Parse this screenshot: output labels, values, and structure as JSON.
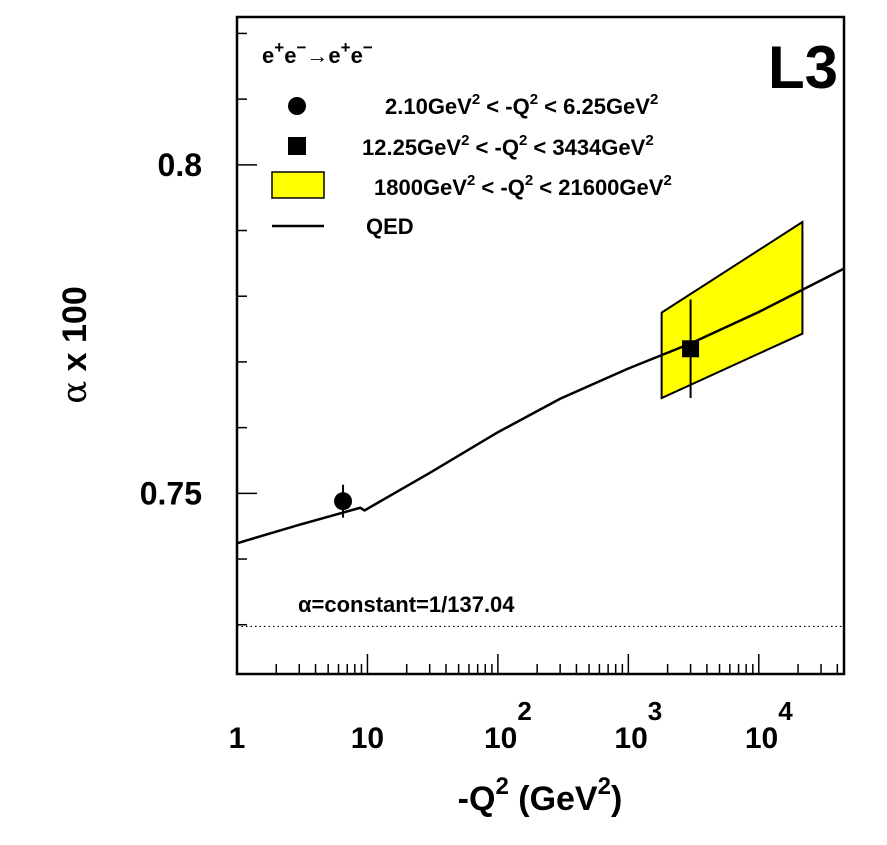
{
  "chart_data": {
    "type": "scatter",
    "title": "L3",
    "process_label": {
      "lhs": "e",
      "lhs_sup1": "+",
      "lhs_mid": "e",
      "lhs_sup2": "−",
      "arrow": "→",
      "rhs": "e",
      "rhs_sup1": "+",
      "rhs_mid": "e",
      "rhs_sup2": "−"
    },
    "xlabel": {
      "prefix": "-Q",
      "sup": "2",
      "middle": " (GeV",
      "sup2": "2",
      "suffix": ")"
    },
    "ylabel": {
      "alpha": "α",
      "rest": " x 100"
    },
    "x_scale": "log",
    "xlim": [
      1,
      45000
    ],
    "ylim": [
      0.7225,
      0.8225
    ],
    "x_ticks": [
      {
        "value": 1,
        "base": "1",
        "exp": ""
      },
      {
        "value": 10,
        "base": "10",
        "exp": ""
      },
      {
        "value": 100,
        "base": "10",
        "exp": "2"
      },
      {
        "value": 1000,
        "base": "10",
        "exp": "3"
      },
      {
        "value": 10000,
        "base": "10",
        "exp": "4"
      }
    ],
    "y_ticks": [
      {
        "value": 0.75,
        "label": "0.75"
      },
      {
        "value": 0.8,
        "label": "0.8"
      }
    ],
    "y_minor_step": 0.01,
    "series": [
      {
        "name": "2.10GeV² < -Q² < 6.25GeV²",
        "legend": {
          "a": "2.10GeV",
          "a_sup": "2",
          "lt1": " < -Q",
          "q_sup": "2",
          "lt2": " < 6.25GeV",
          "b_sup": "2"
        },
        "marker": "circle",
        "x": 6.5,
        "y": 0.7488,
        "yerr_low": 0.0025,
        "yerr_high": 0.0025
      },
      {
        "name": "12.25GeV² < -Q² < 3434GeV²",
        "legend": {
          "a": "12.25GeV",
          "a_sup": "2",
          "lt1": " < -Q",
          "q_sup": "2",
          "lt2": " < 3434GeV",
          "b_sup": "2"
        },
        "marker": "square",
        "x": 3000,
        "y": 0.772,
        "yerr_low": 0.0075,
        "yerr_high": 0.0075
      },
      {
        "name": "1800GeV² < -Q² < 21600GeV²",
        "legend": {
          "a": "1800GeV",
          "a_sup": "2",
          "lt1": " < -Q",
          "q_sup": "2",
          "lt2": " < 21600GeV",
          "b_sup": "2"
        },
        "marker": "band",
        "color": "#ffff00",
        "band": {
          "x_low": 1800,
          "x_high": 21600,
          "upper": [
            0.7775,
            0.7913
          ],
          "lower": [
            0.7645,
            0.7743
          ]
        }
      },
      {
        "name": "QED",
        "legend": {
          "text": "QED"
        },
        "marker": "line",
        "x": [
          1,
          3,
          8.8,
          9.5,
          30,
          100,
          300,
          1000,
          3000,
          10000,
          45000
        ],
        "y": [
          0.7424,
          0.7452,
          0.7478,
          0.7474,
          0.7531,
          0.7593,
          0.7644,
          0.769,
          0.7728,
          0.7776,
          0.7842
        ]
      }
    ],
    "reference_line": {
      "y": 0.72974,
      "label": "α=constant=1/137.04",
      "style": "dotted"
    }
  }
}
